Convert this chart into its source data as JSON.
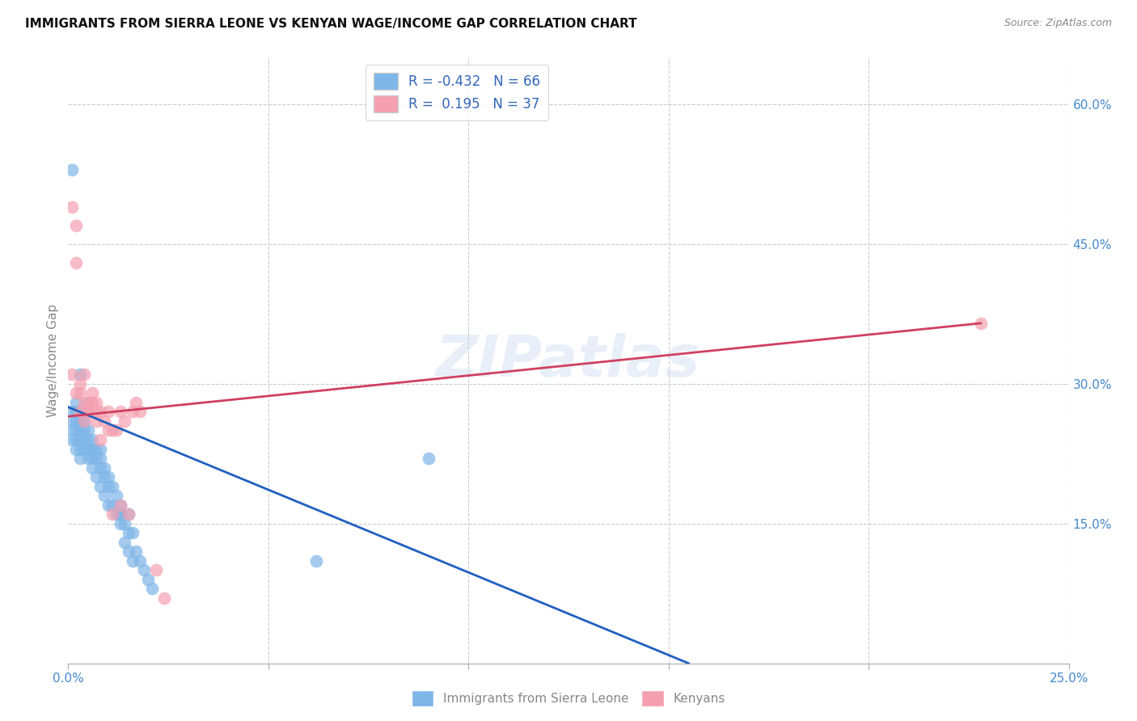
{
  "title": "IMMIGRANTS FROM SIERRA LEONE VS KENYAN WAGE/INCOME GAP CORRELATION CHART",
  "source": "Source: ZipAtlas.com",
  "ylabel": "Wage/Income Gap",
  "xlim": [
    0.0,
    0.25
  ],
  "ylim": [
    0.0,
    0.65
  ],
  "xticks": [
    0.0,
    0.05,
    0.1,
    0.15,
    0.2,
    0.25
  ],
  "xtick_labels": [
    "0.0%",
    "",
    "",
    "",
    "",
    "25.0%"
  ],
  "ytick_labels_right": [
    "60.0%",
    "45.0%",
    "30.0%",
    "15.0%"
  ],
  "ytick_vals_right": [
    0.6,
    0.45,
    0.3,
    0.15
  ],
  "blue_R": -0.432,
  "blue_N": 66,
  "pink_R": 0.195,
  "pink_N": 37,
  "blue_color": "#7EB6E8",
  "pink_color": "#F4A0B0",
  "blue_line_color": "#2060C0",
  "pink_line_color": "#D04060",
  "watermark": "ZIPatlas",
  "legend_label_blue": "Immigrants from Sierra Leone",
  "legend_label_pink": "Kenyans",
  "blue_line_x0": 0.0,
  "blue_line_y0": 0.275,
  "blue_line_x1": 0.155,
  "blue_line_y1": 0.0,
  "pink_line_x0": 0.0,
  "pink_line_y0": 0.265,
  "pink_line_x1": 0.228,
  "pink_line_y1": 0.365,
  "blue_x": [
    0.001,
    0.001,
    0.001,
    0.001,
    0.001,
    0.002,
    0.002,
    0.002,
    0.002,
    0.002,
    0.002,
    0.003,
    0.003,
    0.003,
    0.003,
    0.003,
    0.003,
    0.004,
    0.004,
    0.004,
    0.004,
    0.005,
    0.005,
    0.005,
    0.005,
    0.006,
    0.006,
    0.006,
    0.006,
    0.007,
    0.007,
    0.007,
    0.008,
    0.008,
    0.008,
    0.009,
    0.009,
    0.009,
    0.01,
    0.01,
    0.01,
    0.011,
    0.011,
    0.012,
    0.012,
    0.013,
    0.013,
    0.013,
    0.014,
    0.014,
    0.015,
    0.015,
    0.015,
    0.016,
    0.016,
    0.017,
    0.018,
    0.019,
    0.02,
    0.021,
    0.003,
    0.005,
    0.008,
    0.013,
    0.062,
    0.09
  ],
  "blue_y": [
    0.53,
    0.27,
    0.25,
    0.26,
    0.24,
    0.28,
    0.27,
    0.26,
    0.25,
    0.24,
    0.23,
    0.26,
    0.25,
    0.24,
    0.23,
    0.22,
    0.27,
    0.26,
    0.25,
    0.24,
    0.23,
    0.25,
    0.24,
    0.23,
    0.22,
    0.24,
    0.23,
    0.22,
    0.21,
    0.23,
    0.22,
    0.2,
    0.22,
    0.21,
    0.19,
    0.21,
    0.2,
    0.18,
    0.2,
    0.19,
    0.17,
    0.19,
    0.17,
    0.18,
    0.16,
    0.17,
    0.15,
    0.16,
    0.15,
    0.13,
    0.16,
    0.14,
    0.12,
    0.14,
    0.11,
    0.12,
    0.11,
    0.1,
    0.09,
    0.08,
    0.31,
    0.28,
    0.23,
    0.16,
    0.11,
    0.22
  ],
  "pink_x": [
    0.001,
    0.001,
    0.002,
    0.002,
    0.002,
    0.003,
    0.003,
    0.003,
    0.004,
    0.004,
    0.004,
    0.005,
    0.005,
    0.005,
    0.006,
    0.006,
    0.007,
    0.007,
    0.007,
    0.008,
    0.008,
    0.009,
    0.01,
    0.01,
    0.011,
    0.011,
    0.012,
    0.013,
    0.014,
    0.015,
    0.016,
    0.017,
    0.018,
    0.013,
    0.022,
    0.024,
    0.228
  ],
  "pink_y": [
    0.49,
    0.31,
    0.47,
    0.43,
    0.29,
    0.3,
    0.29,
    0.27,
    0.31,
    0.28,
    0.26,
    0.28,
    0.27,
    0.27,
    0.29,
    0.28,
    0.27,
    0.26,
    0.28,
    0.27,
    0.24,
    0.26,
    0.27,
    0.25,
    0.25,
    0.16,
    0.25,
    0.27,
    0.26,
    0.16,
    0.27,
    0.28,
    0.27,
    0.17,
    0.1,
    0.07,
    0.365
  ]
}
